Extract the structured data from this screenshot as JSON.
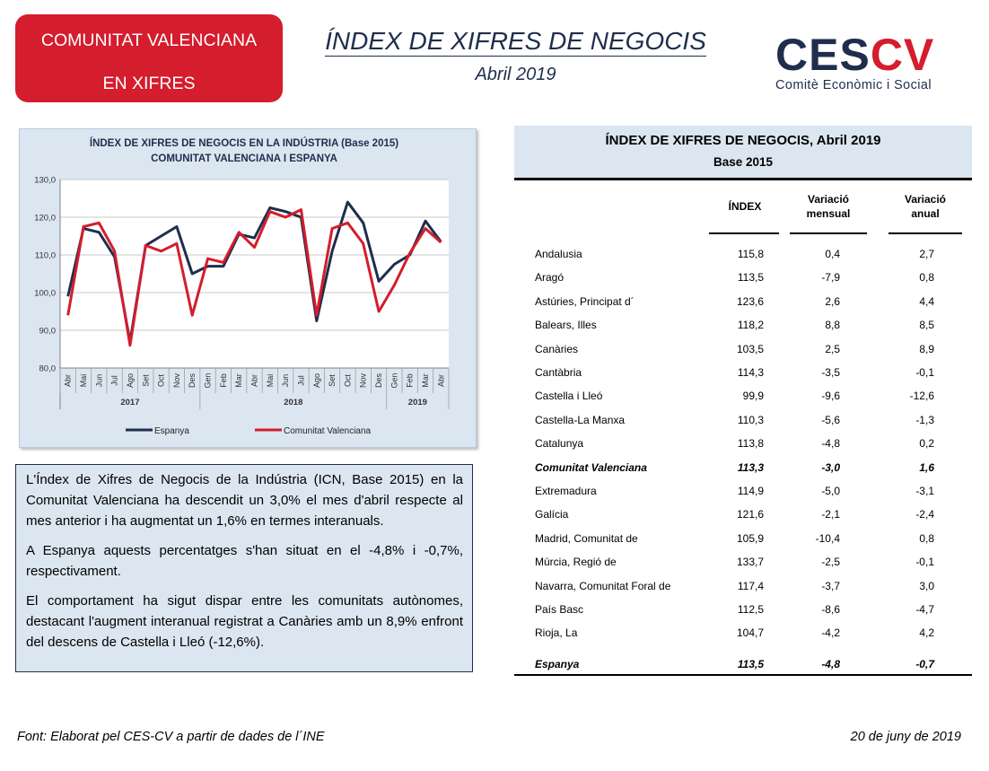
{
  "badge": {
    "line1": "COMUNITAT VALENCIANA",
    "line2": "EN XIFRES"
  },
  "header": {
    "title": "ÍNDEX DE XIFRES DE NEGOCIS",
    "subtitle": "Abril 2019"
  },
  "logo": {
    "ces": "CES",
    "cv": "CV",
    "tagline": "Comitè Econòmic i Social"
  },
  "chart_data": {
    "type": "line",
    "title": "ÍNDEX DE XIFRES DE NEGOCIS EN LA INDÚSTRIA (Base 2015)",
    "subtitle": "COMUNITAT  VALENCIANA  I ESPANYA",
    "categories": [
      "Abr",
      "Mai",
      "Jun",
      "Jul",
      "Ago",
      "Set",
      "Oct",
      "Nov",
      "Des",
      "Gen",
      "Feb",
      "Mar",
      "Abr",
      "Mai",
      "Jun",
      "Jul",
      "Ago",
      "Set",
      "Oct",
      "Nov",
      "Des",
      "Gen",
      "Feb",
      "Mar",
      "Abr"
    ],
    "year_groups": [
      {
        "label": "2017",
        "from": 0,
        "to": 8
      },
      {
        "label": "2018",
        "from": 9,
        "to": 20
      },
      {
        "label": "2019",
        "from": 21,
        "to": 24
      }
    ],
    "y_ticks": [
      "80,0",
      "90,0",
      "100,0",
      "110,0",
      "120,0",
      "130,0"
    ],
    "ylim": [
      80,
      130
    ],
    "grid": true,
    "legend_position": "bottom",
    "series": [
      {
        "name": "Espanya",
        "color": "#1f2e4c",
        "values": [
          99.0,
          117.0,
          116.0,
          109.5,
          87.0,
          112.5,
          115.0,
          117.5,
          105.0,
          107.0,
          107.0,
          115.5,
          114.5,
          122.5,
          121.5,
          120.0,
          92.5,
          111.0,
          124.0,
          118.5,
          103.0,
          107.5,
          110.0,
          119.0,
          113.5
        ]
      },
      {
        "name": "Comunitat Valenciana",
        "color": "#d41d2d",
        "values": [
          94.0,
          117.5,
          118.5,
          111.0,
          86.0,
          112.5,
          111.0,
          113.0,
          94.0,
          109.0,
          108.0,
          116.0,
          112.0,
          121.5,
          120.0,
          122.0,
          94.0,
          117.0,
          118.5,
          113.0,
          95.0,
          102.0,
          110.5,
          117.0,
          113.3
        ]
      }
    ]
  },
  "commentary": {
    "p1": "L'Índex de Xifres de Negocis de la Indústria (ICN, Base 2015) en la Comunitat Valenciana ha descendit un 3,0% el mes d'abril respecte al mes anterior i ha augmentat un 1,6% en termes interanuals.",
    "p2": "A Espanya aquests percentatges s'han situat en el -4,8% i -0,7%, respectivament.",
    "p3": "El comportament ha sigut dispar entre les comunitats autònomes, destacant l'augment interanual registrat a Canàries amb un 8,9% enfront del descens de Castella i Lleó (-12,6%)."
  },
  "table": {
    "title": "ÍNDEX DE XIFRES DE NEGOCIS, Abril 2019",
    "subtitle": "Base 2015",
    "col_index": "ÍNDEX",
    "col_monthly_1": "Variació",
    "col_monthly_2": "mensual",
    "col_annual_1": "Variació",
    "col_annual_2": "anual",
    "rows": [
      {
        "name": "Andalusia",
        "index": "115,8",
        "monthly": "0,4",
        "annual": "2,7"
      },
      {
        "name": "Aragó",
        "index": "113,5",
        "monthly": "-7,9",
        "annual": "0,8"
      },
      {
        "name": "Astúries, Principat d´",
        "index": "123,6",
        "monthly": "2,6",
        "annual": "4,4"
      },
      {
        "name": "Balears, Illes",
        "index": "118,2",
        "monthly": "8,8",
        "annual": "8,5"
      },
      {
        "name": "Canàries",
        "index": "103,5",
        "monthly": "2,5",
        "annual": "8,9"
      },
      {
        "name": "Cantàbria",
        "index": "114,3",
        "monthly": "-3,5",
        "annual": "-0,1"
      },
      {
        "name": "Castella i Lleó",
        "index": "99,9",
        "monthly": "-9,6",
        "annual": "-12,6"
      },
      {
        "name": "Castella-La Manxa",
        "index": "110,3",
        "monthly": "-5,6",
        "annual": "-1,3"
      },
      {
        "name": "Catalunya",
        "index": "113,8",
        "monthly": "-4,8",
        "annual": "0,2"
      },
      {
        "name": "Comunitat Valenciana",
        "index": "113,3",
        "monthly": "-3,0",
        "annual": "1,6"
      },
      {
        "name": "Extremadura",
        "index": "114,9",
        "monthly": "-5,0",
        "annual": "-3,1"
      },
      {
        "name": "Galícia",
        "index": "121,6",
        "monthly": "-2,1",
        "annual": "-2,4"
      },
      {
        "name": "Madrid, Comunitat de",
        "index": "105,9",
        "monthly": "-10,4",
        "annual": "0,8"
      },
      {
        "name": "Múrcia, Regió de",
        "index": "133,7",
        "monthly": "-2,5",
        "annual": "-0,1"
      },
      {
        "name": "Navarra, Comunitat Foral de",
        "index": "117,4",
        "monthly": "-3,7",
        "annual": "3,0"
      },
      {
        "name": "País Basc",
        "index": "112,5",
        "monthly": "-8,6",
        "annual": "-4,7"
      },
      {
        "name": "Rioja, La",
        "index": "104,7",
        "monthly": "-4,2",
        "annual": "4,2"
      }
    ],
    "total": {
      "name": "Espanya",
      "index": "113,5",
      "monthly": "-4,8",
      "annual": "-0,7"
    }
  },
  "footer": {
    "source": "Font: Elaborat pel CES-CV a partir de dades de l´INE",
    "date": "20 de juny de 2019"
  }
}
